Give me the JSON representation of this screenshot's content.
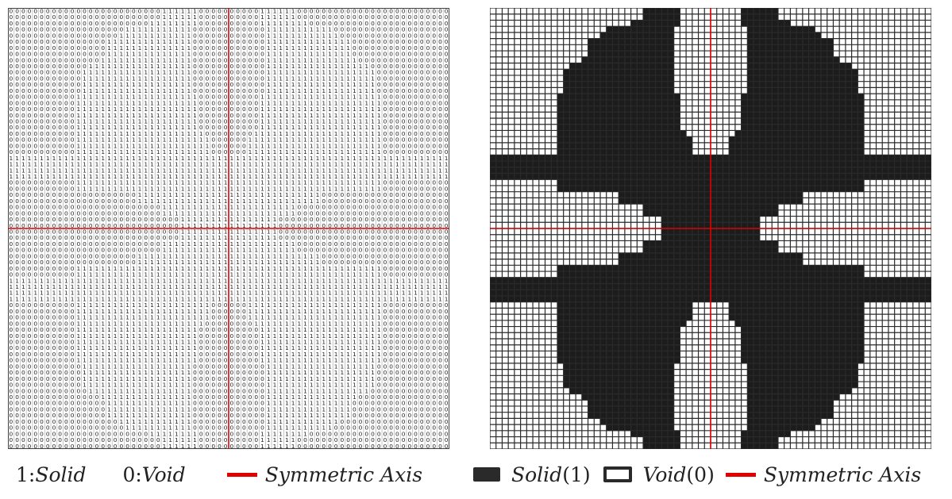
{
  "left_legend": {
    "solid_num": "1:",
    "solid_text": "Solid",
    "void_num": "0:",
    "void_text": "Void",
    "axis_text": "Symmetric Axis"
  },
  "right_legend": {
    "solid_text": "Solid",
    "solid_num": "(1)",
    "void_text": "Void",
    "void_num": "(0)",
    "axis_text": "Symmetric Axis"
  },
  "grid": {
    "size": 72,
    "axis_color": "#e00000",
    "solid_color": "#1c1c1c",
    "void_color": "#ffffff",
    "line_color": "#2a2a2a",
    "solid_value": "1",
    "void_value": "0"
  },
  "chart_data": {
    "type": "heatmap",
    "rows": 72,
    "cols": 72,
    "symmetry": "quarter (mirrored about horizontal and vertical center axes)",
    "quadrant_top_left_rows": [
      "000000000000000000000000011111100000",
      "000000000000000000000000011111100000",
      "000000000000000000000001111111100000",
      "000000000000000000011111111111000000",
      "000000000000000000111111111111000000",
      "000000000000000011111111111111000000",
      "000000000000000011111111111111000000",
      "000000000000000011111111111111000000",
      "000000000000000111111111111111000000",
      "000000000000011111111111111111000000",
      "000000000000111111111111111111000000",
      "000000000000111111111111111111000000",
      "000000000000111111111111111111000000",
      "000000000000111111111111111111000000",
      "000000000001111111111111111111100000",
      "000000000001111111111111111111100000",
      "000000000001111111111111111111100000",
      "000000000001111111111111111111100000",
      "000000000001111111111111111111100000",
      "000000000001111111111111111111100000",
      "000000000001111111111111111111110000",
      "000000000001111111111111111111111000",
      "000000000001111111111111111111111000",
      "000000000001111111111111111111111000",
      "111111111111111111111111111111111111",
      "111111111111111111111111111111111111",
      "111111111111111111111111111111111111",
      "111111111111111111111111111111111111",
      "000000000001111111111111111111111111",
      "000000000001111111111111111111111111",
      "000000000000000000000111111111111111",
      "000000000000000000000111111111111111",
      "000000000000000000000000011111111111",
      "000000000000000000000000011111111111",
      "000000000000000000000000000011111111",
      "000000000000000000000000000011111111"
    ]
  }
}
